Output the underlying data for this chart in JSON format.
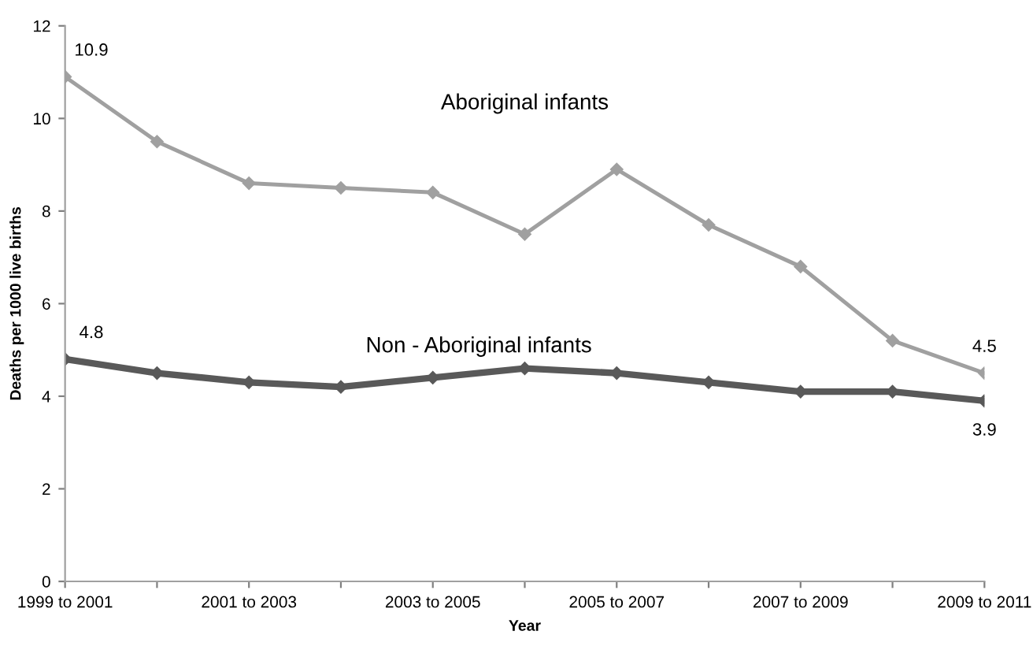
{
  "chart_data": {
    "type": "line",
    "xlabel": "Year",
    "ylabel": "Deaths per 1000 live births",
    "categories": [
      "1999 to 2001",
      null,
      "2001 to 2003",
      null,
      "2003 to 2005",
      null,
      "2005 to 2007",
      null,
      "2007 to 2009",
      null,
      "2009 to 2011"
    ],
    "series": [
      {
        "name": "Aboriginal infants",
        "color": "#a0a0a0",
        "values": [
          10.9,
          9.5,
          8.6,
          8.5,
          8.4,
          7.5,
          8.9,
          7.7,
          6.8,
          5.2,
          4.5
        ],
        "value_labels": [
          "10.9",
          null,
          null,
          null,
          null,
          null,
          null,
          null,
          null,
          null,
          "4.5"
        ]
      },
      {
        "name": "Non - Aboriginal infants",
        "color": "#595959",
        "values": [
          4.8,
          4.5,
          4.3,
          4.2,
          4.4,
          4.6,
          4.5,
          4.3,
          4.1,
          4.1,
          3.9
        ],
        "value_labels": [
          "4.8",
          null,
          null,
          null,
          null,
          null,
          null,
          null,
          null,
          null,
          "3.9"
        ]
      }
    ],
    "ylim": [
      0,
      12
    ],
    "yticks": [
      0,
      2,
      4,
      6,
      8,
      10,
      12
    ],
    "grid": false,
    "legend": false,
    "marker": "diamond",
    "line_style": "solid"
  }
}
